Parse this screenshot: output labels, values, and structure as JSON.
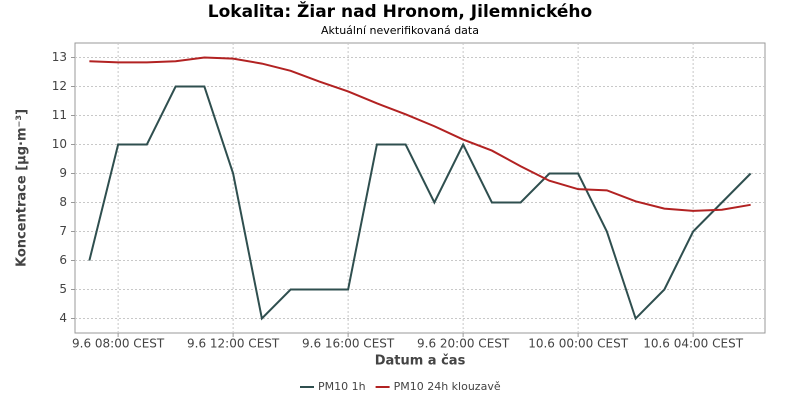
{
  "chart_data": {
    "type": "line",
    "title": "Lokalita: Žiar nad Hronom, Jilemnického",
    "subtitle": "Aktuální neverifikovaná data",
    "x_label": "Datum a čas",
    "y_label": "Koncentrace [µg·m⁻³]",
    "categories": [
      null,
      "9.6 08:00 CEST",
      null,
      null,
      null,
      "9.6 12:00 CEST",
      null,
      null,
      null,
      "9.6 16:00 CEST",
      null,
      null,
      null,
      "9.6 20:00 CEST",
      null,
      null,
      null,
      "10.6 00:00 CEST",
      null,
      null,
      null,
      "10.6 04:00 CEST",
      null,
      null
    ],
    "series": [
      {
        "name": "PM10 1h",
        "color": "#2f4f4f",
        "values": [
          6,
          10,
          10,
          12,
          12,
          9,
          4,
          5,
          5,
          5,
          10,
          10,
          8,
          10,
          8,
          8,
          9,
          9,
          7,
          4,
          5,
          7,
          8,
          9
        ]
      },
      {
        "name": "PM10 24h klouzavě",
        "color": "#b22222",
        "values": [
          12.87,
          12.83,
          12.83,
          12.87,
          13.0,
          12.96,
          12.79,
          12.54,
          12.17,
          11.83,
          11.42,
          11.04,
          10.63,
          10.17,
          9.79,
          9.25,
          8.75,
          8.46,
          8.42,
          8.04,
          7.79,
          7.71,
          7.75,
          7.92
        ]
      }
    ],
    "ylim": [
      3.5,
      13.5
    ],
    "yticks": [
      4,
      5,
      6,
      7,
      8,
      9,
      10,
      11,
      12,
      13
    ],
    "grid": true,
    "legend": "bottom"
  }
}
